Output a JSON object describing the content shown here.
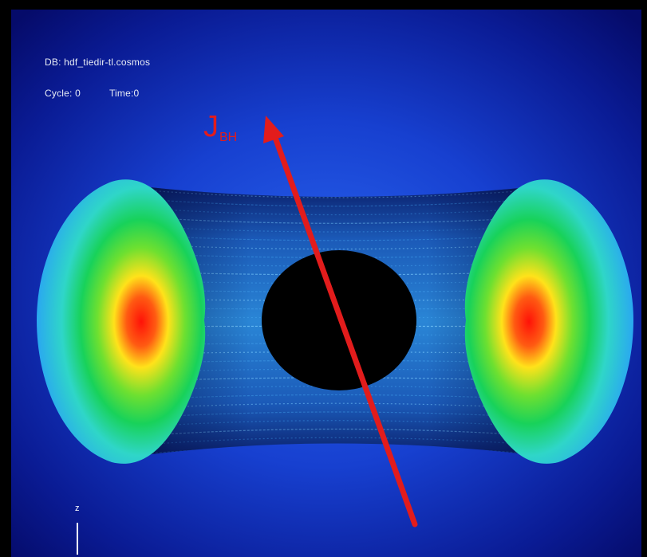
{
  "hud": {
    "db_line": "DB: hdf_tiedir-tl.cosmos",
    "cycle_label": "Cycle: 0",
    "time_label": "Time:0"
  },
  "annotation": {
    "vector_symbol": "J",
    "vector_subscript": "BH"
  },
  "axis_indicator": {
    "label": "z"
  },
  "colors": {
    "background_center": "#1a4fe0",
    "background_edge": "#050b6a",
    "torus_core": "#ff1a10",
    "torus_mid": "#ffe21a",
    "torus_outer": "#18d25a",
    "torus_rim": "#2aa8f0",
    "black_hole": "#000000",
    "spin_vector": "#e21c1c"
  }
}
